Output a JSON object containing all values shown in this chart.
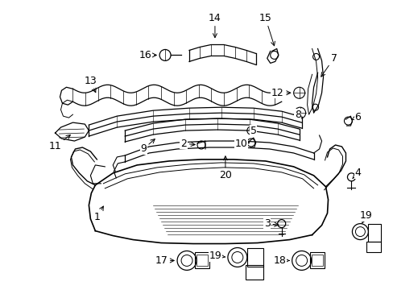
{
  "background_color": "#ffffff",
  "figsize": [
    4.89,
    3.6
  ],
  "dpi": 100,
  "line_color": "#000000",
  "label_color": "#000000",
  "arrow_color": "#000000"
}
